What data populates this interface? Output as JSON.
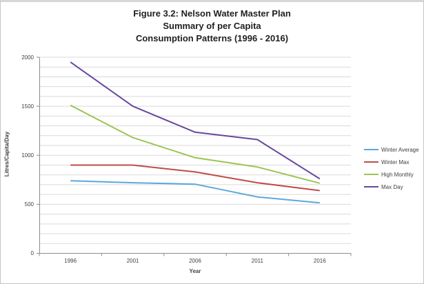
{
  "title": {
    "lines": [
      "Figure 3.2: Nelson Water Master Plan",
      "Summary of per Capita",
      "Consumption Patterns (1996 - 2016)"
    ]
  },
  "chart_data": {
    "type": "line",
    "categories": [
      "1996",
      "2001",
      "2006",
      "2011",
      "2016"
    ],
    "series": [
      {
        "name": "Winter Average",
        "color": "#5BA7DB",
        "values": [
          740,
          720,
          705,
          575,
          515
        ]
      },
      {
        "name": "Winter Max",
        "color": "#BE4B48",
        "values": [
          900,
          900,
          830,
          720,
          640
        ]
      },
      {
        "name": "High Monthly",
        "color": "#9CC353",
        "values": [
          1510,
          1180,
          975,
          880,
          715
        ]
      },
      {
        "name": "Max Day",
        "color": "#66489D",
        "values": [
          1950,
          1500,
          1235,
          1160,
          760
        ]
      }
    ],
    "xlabel": "Year",
    "ylabel": "Litres/Capita/Day",
    "ylim": [
      0,
      2000
    ],
    "ytick_step": 500,
    "minor_gridline_step": 100,
    "yticks": [
      "0",
      "500",
      "1000",
      "1500",
      "2000"
    ],
    "grid": true,
    "legend_position": "right",
    "colors": {
      "gridline": "#D9D9D9",
      "axis_line": "#8C8C8C",
      "tick_text": "#3f3f3f",
      "title_text": "#1f1f1f"
    }
  }
}
